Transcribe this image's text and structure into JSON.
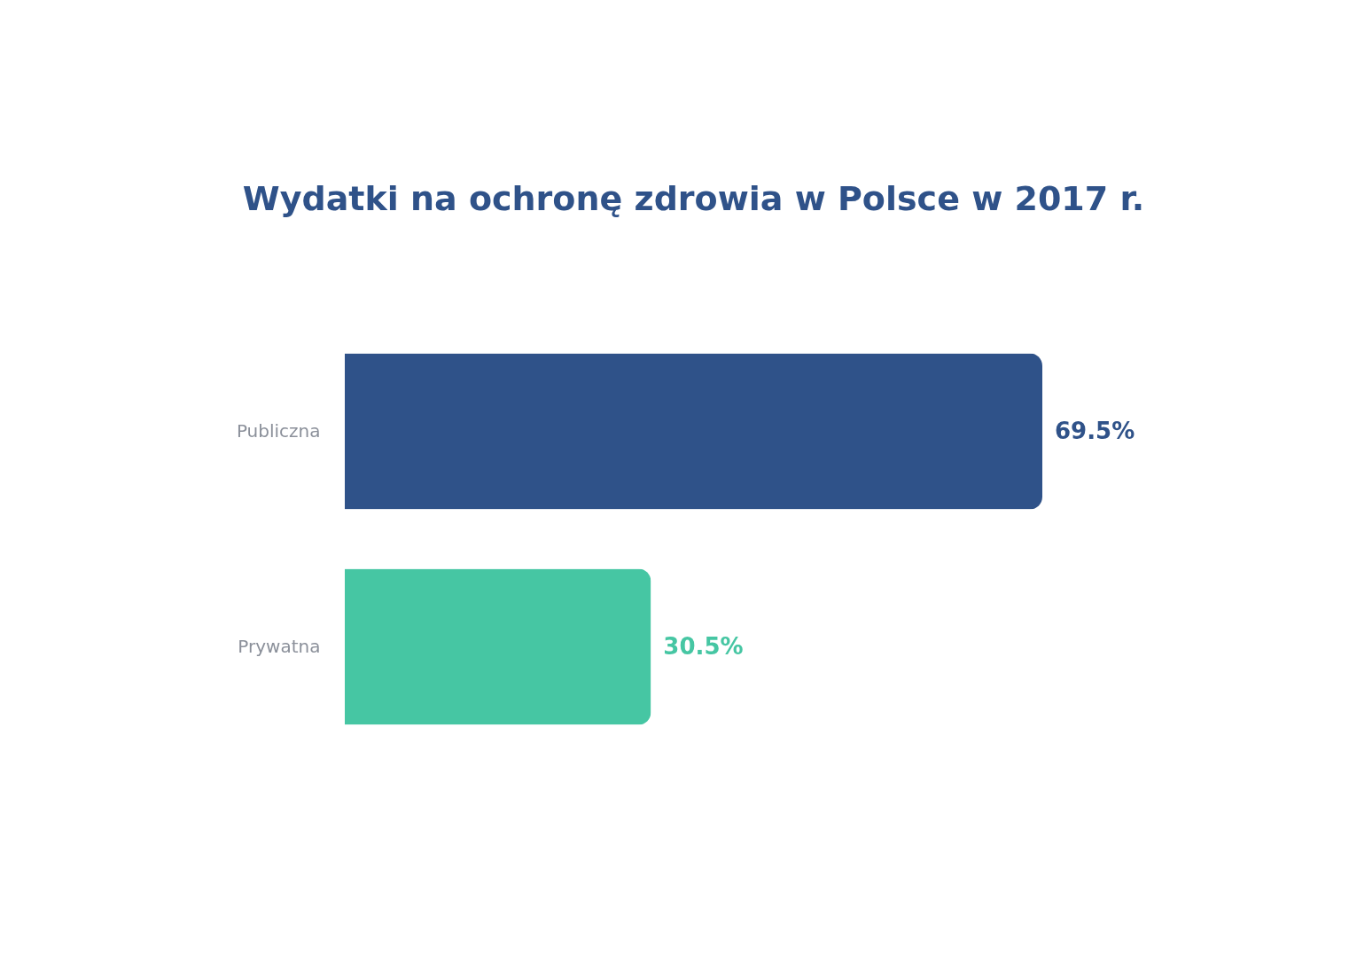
{
  "chart_data": {
    "type": "bar",
    "orientation": "horizontal",
    "title": "Wydatki na ochronę zdrowia w Polsce w 2017 r.",
    "categories": [
      "Publiczna",
      "Prywatna"
    ],
    "values": [
      69.5,
      30.5
    ],
    "colors": [
      "#2f5289",
      "#46c6a3"
    ],
    "value_labels": [
      "69.5%",
      "30.5%"
    ],
    "tick_labels": "y"
  }
}
